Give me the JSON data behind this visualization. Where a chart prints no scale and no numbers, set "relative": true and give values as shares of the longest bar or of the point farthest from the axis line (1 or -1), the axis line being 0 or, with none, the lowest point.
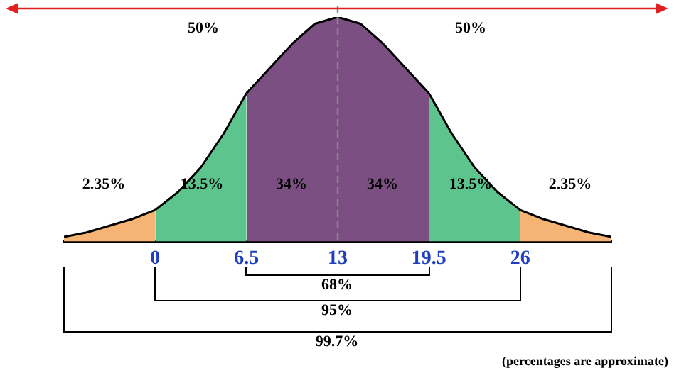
{
  "chart_data": {
    "type": "area",
    "relative": true,
    "grid": false,
    "legend": false,
    "xlim": [
      -6.5,
      32.5
    ],
    "xticks": [
      0,
      6.5,
      13,
      19.5,
      26
    ],
    "series": [
      {
        "color": "#f5b474",
        "x": [
          -6.5,
          -4.875,
          -3.25,
          -1.625,
          0
        ],
        "values": [
          0.02,
          0.04,
          0.07,
          0.1,
          0.14
        ]
      },
      {
        "color": "#5cc48c",
        "x": [
          0,
          1.625,
          3.25,
          4.875,
          6.5
        ],
        "values": [
          0.14,
          0.22,
          0.33,
          0.48,
          0.66
        ]
      },
      {
        "color": "#7b4f82",
        "x": [
          6.5,
          8.125,
          9.75,
          11.375,
          13,
          14.625,
          16.25,
          17.875,
          19.5
        ],
        "values": [
          0.66,
          0.77,
          0.88,
          0.97,
          1,
          0.97,
          0.88,
          0.77,
          0.66
        ]
      },
      {
        "color": "#5cc48c",
        "x": [
          19.5,
          21.125,
          22.75,
          24.375,
          26
        ],
        "values": [
          0.66,
          0.48,
          0.33,
          0.22,
          0.14
        ]
      },
      {
        "color": "#f5b474",
        "x": [
          26,
          27.625,
          29.25,
          30.875,
          32.5
        ],
        "values": [
          0.14,
          0.1,
          0.07,
          0.04,
          0.02
        ]
      }
    ],
    "ref_lines": [
      {
        "axis": "x",
        "value": 13,
        "color": "#888888",
        "line_style": "dashed"
      }
    ],
    "annotations": [
      "50%",
      "50%",
      "2.35%",
      "13.5%",
      "34%",
      "34%",
      "13.5%",
      "2.35%",
      "68%",
      "95%",
      "99.7%",
      "(percentages are approximate)"
    ]
  }
}
